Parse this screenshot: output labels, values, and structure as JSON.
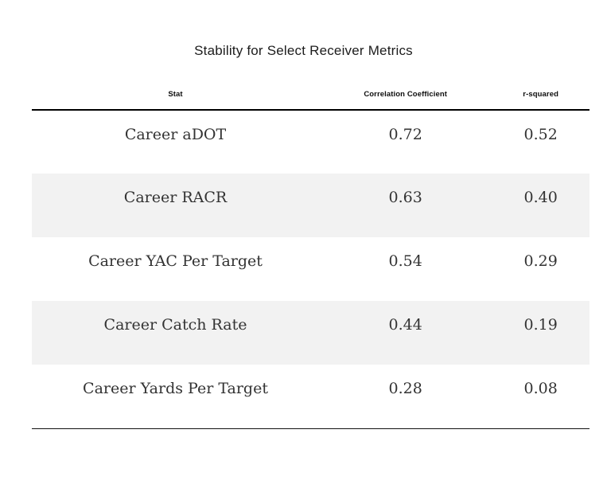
{
  "chart_data": {
    "type": "table",
    "title": "Stability for Select Receiver Metrics",
    "columns": [
      "Stat",
      "Correlation Coefficient",
      "r-squared"
    ],
    "rows": [
      [
        "Career aDOT",
        0.72,
        0.52
      ],
      [
        "Career RACR",
        0.63,
        0.4
      ],
      [
        "Career YAC Per Target",
        0.54,
        0.29
      ],
      [
        "Career Catch Rate",
        0.44,
        0.19
      ],
      [
        "Career Yards Per Target",
        0.28,
        0.08
      ]
    ],
    "legend": "none",
    "grid": "zebra-rows"
  },
  "table": {
    "title": "Stability for Select Receiver Metrics",
    "columns": [
      "Stat",
      "Correlation Coefficient",
      "r-squared"
    ],
    "rows": [
      {
        "stat": "Career aDOT",
        "correlation": "0.72",
        "r_squared": "0.52"
      },
      {
        "stat": "Career RACR",
        "correlation": "0.63",
        "r_squared": "0.40"
      },
      {
        "stat": "Career YAC Per Target",
        "correlation": "0.54",
        "r_squared": "0.29"
      },
      {
        "stat": "Career Catch Rate",
        "correlation": "0.44",
        "r_squared": "0.19"
      },
      {
        "stat": "Career Yards Per Target",
        "correlation": "0.28",
        "r_squared": "0.08"
      }
    ]
  },
  "colors": {
    "background": "#ffffff",
    "zebra_row": "#f2f2f2",
    "header_rule": "#000000",
    "bottom_rule": "#121212",
    "body_text": "#333333",
    "header_text": "#0d0d0d",
    "title_text": "#1c1c1c"
  }
}
